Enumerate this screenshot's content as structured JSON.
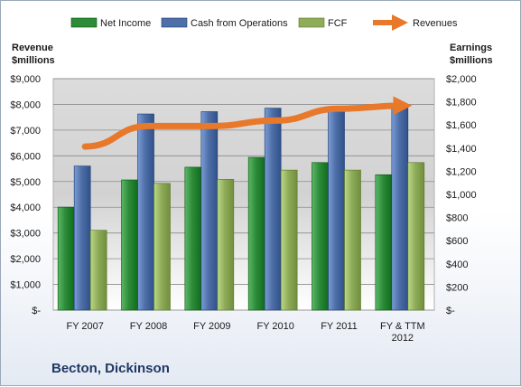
{
  "company_title": "Becton, Dickinson",
  "chart_data": {
    "type": "bar",
    "categories": [
      "FY 2007",
      "FY 2008",
      "FY 2009",
      "FY 2010",
      "FY 2011",
      "FY & TTM 2012"
    ],
    "series": [
      {
        "name": "Net Income",
        "axis": "right",
        "values": [
          890,
          1125,
          1235,
          1320,
          1275,
          1170
        ],
        "color": "#2e8b3a"
      },
      {
        "name": "Cash from Operations",
        "axis": "right",
        "values": [
          1245,
          1695,
          1715,
          1745,
          1715,
          1765
        ],
        "color": "#4f6fa8"
      },
      {
        "name": "FCF",
        "axis": "right",
        "values": [
          690,
          1095,
          1130,
          1210,
          1210,
          1275
        ],
        "color": "#8fac5a"
      },
      {
        "name": "Revenues",
        "axis": "left",
        "type": "line",
        "values": [
          6360,
          7160,
          7160,
          7370,
          7830,
          7950
        ],
        "color": "#e8782a"
      }
    ],
    "y_left": {
      "label_line1": "Revenue",
      "label_line2": "$millions",
      "ylim": [
        0,
        9000
      ],
      "ticks": [
        0,
        1000,
        2000,
        3000,
        4000,
        5000,
        6000,
        7000,
        8000,
        9000
      ],
      "tick_labels": [
        "$-",
        "$1,000",
        "$2,000",
        "$3,000",
        "$4,000",
        "$5,000",
        "$6,000",
        "$7,000",
        "$8,000",
        "$9,000"
      ]
    },
    "y_right": {
      "label_line1": "Earnings",
      "label_line2": "$millions",
      "ylim": [
        0,
        2000
      ],
      "ticks": [
        0,
        200,
        400,
        600,
        800,
        1000,
        1200,
        1400,
        1600,
        1800,
        2000
      ],
      "tick_labels": [
        "$-",
        "$200",
        "$400",
        "$600",
        "$800",
        "$1,000",
        "$1,200",
        "$1,400",
        "$1,600",
        "$1,800",
        "$2,000"
      ]
    },
    "legend_position": "top",
    "grid": true
  }
}
